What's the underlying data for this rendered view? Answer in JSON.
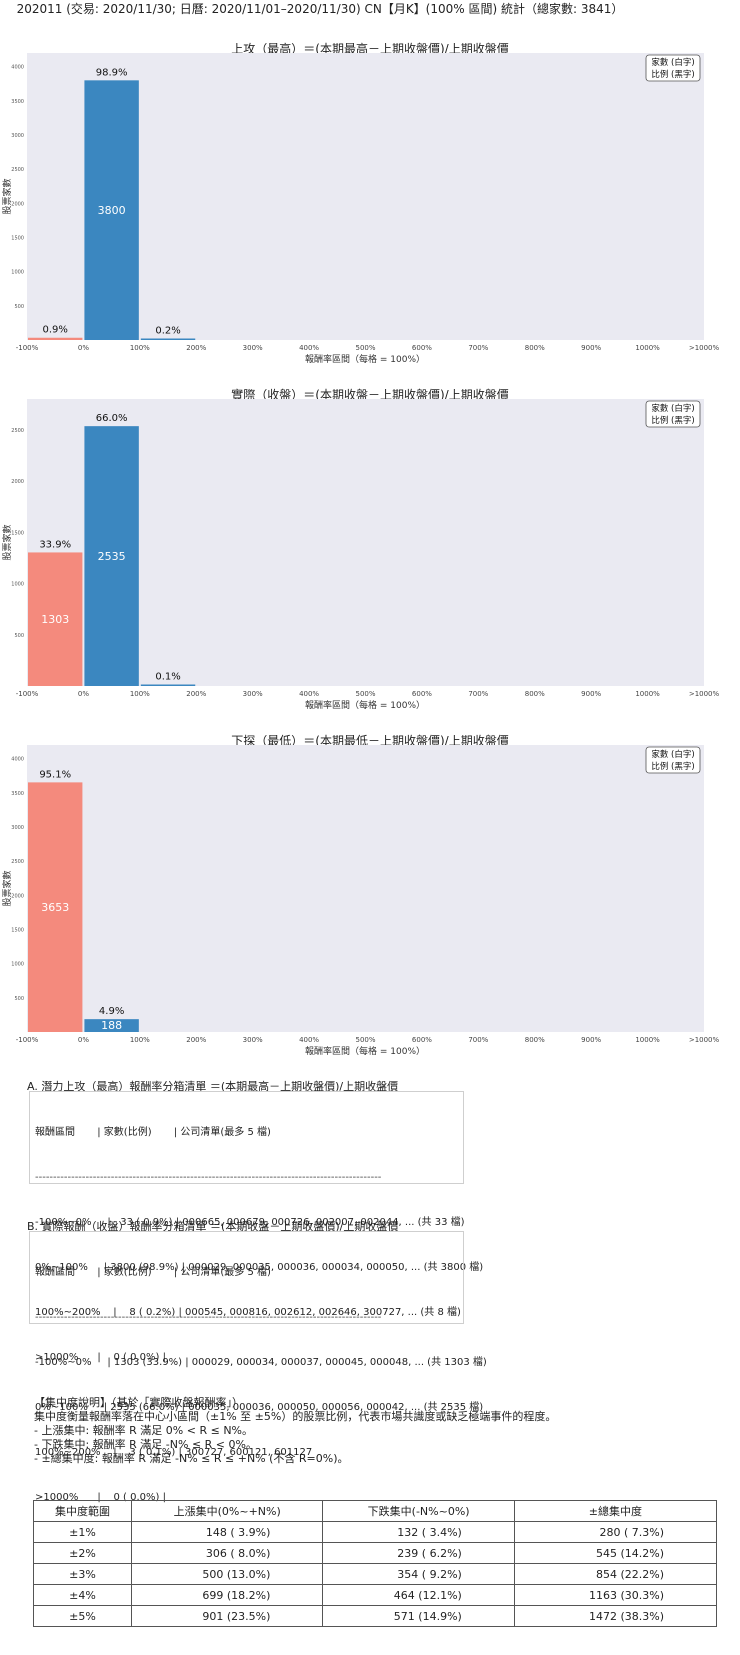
{
  "header": {
    "title": "202011 (交易: 2020/11/30; 日曆: 2020/11/01–2020/11/30) CN【月K】(100% 區間) 統計（總家數: 3841）"
  },
  "legend": {
    "line1": "家數 (白字)",
    "line2": "比例 (黑字)"
  },
  "axis": {
    "xlabel": "報酬率區間（每格 = 100%）",
    "ylabel": "股票家數",
    "x_ticks": [
      "-100%",
      "0%",
      "100%",
      "200%",
      "300%",
      "400%",
      "500%",
      "600%",
      "700%",
      "800%",
      "900%",
      "1000%",
      ">1000%"
    ]
  },
  "colors": {
    "up": "#3b87c0",
    "down": "#f48a7d",
    "plot_bg": "#eaeaf2"
  },
  "chart_data": [
    {
      "type": "bar",
      "title": "上攻（最高）＝(本期最高－上期收盤價)/上期收盤價",
      "xlabel": "報酬率區間（每格 = 100%）",
      "ylabel": "股票家數",
      "categories": [
        "-100%~0%",
        "0%~100%",
        "100%~200%",
        "200%~300%",
        "300%~400%",
        "400%~500%",
        "500%~600%",
        "600%~700%",
        "700%~800%",
        "800%~900%",
        "900%~1000%",
        ">1000%"
      ],
      "values": [
        33,
        3800,
        8,
        0,
        0,
        0,
        0,
        0,
        0,
        0,
        0,
        0
      ],
      "pct_labels": [
        "0.9%",
        "98.9%",
        "0.2%",
        "",
        "",
        "",
        "",
        "",
        "",
        "",
        "",
        ""
      ],
      "count_labels": [
        "",
        "3800",
        "",
        "",
        "",
        "",
        "",
        "",
        "",
        "",
        "",
        ""
      ],
      "y_ticks": [
        "500",
        "1000",
        "1500",
        "2000",
        "2500",
        "3000",
        "3500",
        "4000"
      ],
      "ylim": [
        0,
        4200
      ],
      "legend": "top-right",
      "grid": false
    },
    {
      "type": "bar",
      "title": "實際（收盤）＝(本期收盤－上期收盤價)/上期收盤價",
      "xlabel": "報酬率區間（每格 = 100%）",
      "ylabel": "股票家數",
      "categories": [
        "-100%~0%",
        "0%~100%",
        "100%~200%",
        "200%~300%",
        "300%~400%",
        "400%~500%",
        "500%~600%",
        "600%~700%",
        "700%~800%",
        "800%~900%",
        "900%~1000%",
        ">1000%"
      ],
      "values": [
        1303,
        2535,
        3,
        0,
        0,
        0,
        0,
        0,
        0,
        0,
        0,
        0
      ],
      "pct_labels": [
        "33.9%",
        "66.0%",
        "0.1%",
        "",
        "",
        "",
        "",
        "",
        "",
        "",
        "",
        ""
      ],
      "count_labels": [
        "1303",
        "2535",
        "",
        "",
        "",
        "",
        "",
        "",
        "",
        "",
        "",
        ""
      ],
      "y_ticks": [
        "500",
        "1000",
        "1500",
        "2000",
        "2500"
      ],
      "ylim": [
        0,
        2800
      ],
      "legend": "top-right",
      "grid": false
    },
    {
      "type": "bar",
      "title": "下探（最低）＝(本期最低－上期收盤價)/上期收盤價",
      "xlabel": "報酬率區間（每格 = 100%）",
      "ylabel": "股票家數",
      "categories": [
        "-100%~0%",
        "0%~100%",
        "100%~200%",
        "200%~300%",
        "300%~400%",
        "400%~500%",
        "500%~600%",
        "600%~700%",
        "700%~800%",
        "800%~900%",
        "900%~1000%",
        ">1000%"
      ],
      "values": [
        3653,
        188,
        0,
        0,
        0,
        0,
        0,
        0,
        0,
        0,
        0,
        0
      ],
      "pct_labels": [
        "95.1%",
        "4.9%",
        "",
        "",
        "",
        "",
        "",
        "",
        "",
        "",
        "",
        ""
      ],
      "count_labels": [
        "3653",
        "188",
        "",
        "",
        "",
        "",
        "",
        "",
        "",
        "",
        "",
        ""
      ],
      "y_ticks": [
        "500",
        "1000",
        "1500",
        "2000",
        "2500",
        "3000",
        "3500",
        "4000"
      ],
      "ylim": [
        0,
        4200
      ],
      "legend": "top-right",
      "grid": false
    }
  ],
  "list_a": {
    "title": "A. 潛力上攻（最高）報酬率分箱清單 ＝(本期最高－上期收盤價)/上期收盤價",
    "header": "報酬區間       | 家數(比例)       | 公司清單(最多 5 檔)",
    "separator": "------------------------------------------------------------------------------------------------",
    "rows": [
      "-100%~0%     |   33 ( 0.9%) | 000665, 000679, 000726, 002007, 002044, ... (共 33 檔)",
      "0%~100%     | 3800 (98.9%) | 000029, 000035, 000036, 000034, 000050, ... (共 3800 檔)",
      "100%~200%    |    8 ( 0.2%) | 000545, 000816, 002612, 002646, 300727, ... (共 8 檔)",
      ">1000%      |    0 ( 0.0%) |"
    ]
  },
  "list_b": {
    "title": "B. 實際報酬（收盤）報酬率分箱清單 ＝(本期收盤－上期收盤價)/上期收盤價",
    "header": "報酬區間       | 家數(比例)       | 公司清單(最多 5 檔)",
    "separator": "------------------------------------------------------------------------------------------------",
    "rows": [
      "-100%~0%     | 1303 (33.9%) | 000029, 000034, 000037, 000045, 000048, ... (共 1303 檔)",
      "0%~100%     | 2535 (66.0%) | 000035, 000036, 000050, 000056, 000042, ... (共 2535 檔)",
      "100%~200%    |    3 ( 0.1%) | 300727, 600121, 601127",
      ">1000%      |    0 ( 0.0%) |"
    ]
  },
  "concentration": {
    "title": "【集中度說明】（基於「實際收盤報酬率」）",
    "desc": "集中度衡量報酬率落在中心小區間（±1% 至 ±5%）的股票比例，代表市場共識度或缺乏極端事件的程度。",
    "items": [
      " - 上漲集中: 報酬率 R 滿足 0% < R ≤ N%。",
      " - 下跌集中: 報酬率 R 滿足 -N% ≤ R < 0%。",
      " - ±總集中度: 報酬率 R 滿足 -N% ≤ R ≤ +N% (不含 R=0%)。"
    ],
    "table": {
      "headers": [
        "集中度範圍",
        "上漲集中(0%~+N%)",
        "下跌集中(-N%~0%)",
        "±總集中度"
      ],
      "rows": [
        [
          "±1%",
          "148 ( 3.9%)",
          "132 ( 3.4%)",
          "280 ( 7.3%)"
        ],
        [
          "±2%",
          "306 ( 8.0%)",
          "239 ( 6.2%)",
          "545 (14.2%)"
        ],
        [
          "±3%",
          "500 (13.0%)",
          "354 ( 9.2%)",
          "854 (22.2%)"
        ],
        [
          "±4%",
          "699 (18.2%)",
          "464 (12.1%)",
          "1163 (30.3%)"
        ],
        [
          "±5%",
          "901 (23.5%)",
          "571 (14.9%)",
          "1472 (38.3%)"
        ]
      ]
    }
  }
}
